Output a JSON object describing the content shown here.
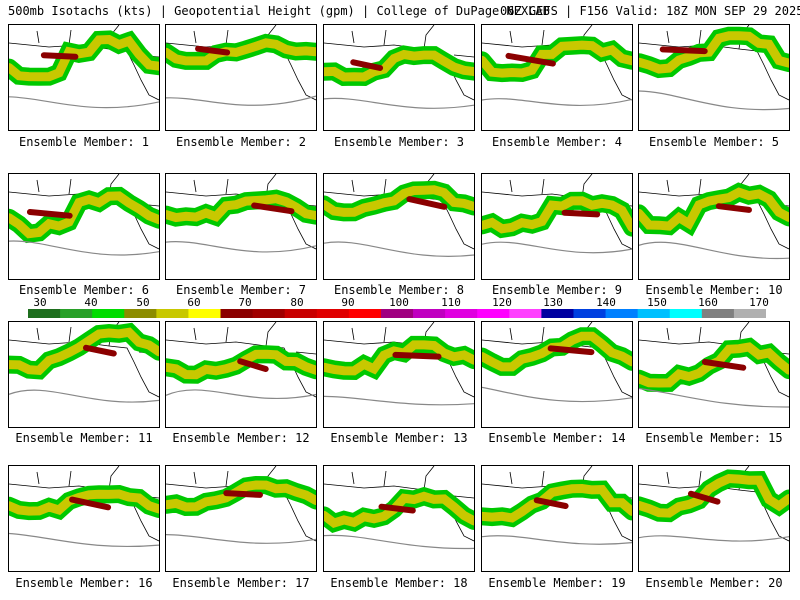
{
  "header": {
    "left": "500mb Isotachs (kts) | Geopotential Height (gpm) | College of DuPage NEXLAB",
    "right": "06Z GEFS | F156 Valid: 18Z MON SEP 29 2025"
  },
  "panels": [
    {
      "label": "Ensemble Member: 1"
    },
    {
      "label": "Ensemble Member: 2"
    },
    {
      "label": "Ensemble Member: 3"
    },
    {
      "label": "Ensemble Member: 4"
    },
    {
      "label": "Ensemble Member: 5"
    },
    {
      "label": "Ensemble Member: 6"
    },
    {
      "label": "Ensemble Member: 7"
    },
    {
      "label": "Ensemble Member: 8"
    },
    {
      "label": "Ensemble Member: 9"
    },
    {
      "label": "Ensemble Member: 10"
    },
    {
      "label": "Ensemble Member: 11"
    },
    {
      "label": "Ensemble Member: 12"
    },
    {
      "label": "Ensemble Member: 13"
    },
    {
      "label": "Ensemble Member: 14"
    },
    {
      "label": "Ensemble Member: 15"
    },
    {
      "label": "Ensemble Member: 16"
    },
    {
      "label": "Ensemble Member: 17"
    },
    {
      "label": "Ensemble Member: 18"
    },
    {
      "label": "Ensemble Member: 19"
    },
    {
      "label": "Ensemble Member: 20"
    }
  ],
  "colorbar": {
    "ticks": [
      "30",
      "40",
      "50",
      "60",
      "70",
      "80",
      "90",
      "100",
      "110",
      "120",
      "130",
      "140",
      "150",
      "160",
      "170"
    ],
    "colors": [
      "#1e6e1e",
      "#28a028",
      "#00dc00",
      "#8c8c00",
      "#c8c800",
      "#ffff00",
      "#8b0000",
      "#a00000",
      "#c80000",
      "#e00000",
      "#ff0000",
      "#a00080",
      "#c000c0",
      "#e000e0",
      "#ff00ff",
      "#ff40ff",
      "#0000a0",
      "#0040e0",
      "#0080ff",
      "#00c0ff",
      "#00ffff",
      "#808080",
      "#b0b0b0"
    ]
  }
}
